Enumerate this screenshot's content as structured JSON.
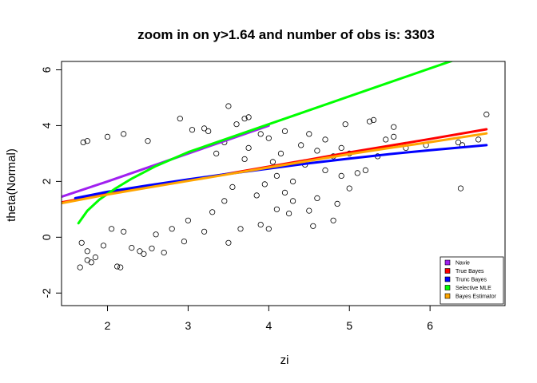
{
  "chart_data": {
    "type": "scatter",
    "title": "zoom in on y>1.64 and number of obs is: 3303",
    "xlabel": "zi",
    "ylabel": "theta(Normal)",
    "xlim": [
      1.43,
      6.93
    ],
    "ylim": [
      -2.45,
      6.3
    ],
    "x_ticks": [
      2,
      3,
      4,
      5,
      6
    ],
    "y_ticks": [
      -2,
      0,
      2,
      4,
      6
    ],
    "x_tick_labels": [
      "2",
      "3",
      "4",
      "5",
      "6"
    ],
    "y_tick_labels": [
      "-2",
      "0",
      "2",
      "4",
      "6"
    ],
    "n_obs": 3303,
    "point_style": "open circle",
    "points": [
      [
        1.66,
        -1.08
      ],
      [
        1.75,
        -0.82
      ],
      [
        1.85,
        -0.72
      ],
      [
        1.8,
        -0.9
      ],
      [
        2.12,
        -1.05
      ],
      [
        2.16,
        -1.08
      ],
      [
        2.3,
        -0.38
      ],
      [
        2.4,
        -0.5
      ],
      [
        2.45,
        -0.6
      ],
      [
        2.55,
        -0.4
      ],
      [
        2.7,
        -0.55
      ],
      [
        2.95,
        -0.15
      ],
      [
        3.5,
        -0.2
      ],
      [
        3.65,
        0.3
      ],
      [
        3.9,
        0.45
      ],
      [
        4.0,
        0.3
      ],
      [
        4.25,
        0.85
      ],
      [
        4.5,
        0.95
      ],
      [
        4.55,
        0.4
      ],
      [
        4.8,
        0.6
      ],
      [
        5.0,
        1.75
      ],
      [
        4.1,
        1.0
      ],
      [
        4.3,
        1.3
      ],
      [
        4.6,
        1.4
      ],
      [
        4.85,
        1.2
      ],
      [
        5.1,
        2.3
      ],
      [
        5.2,
        2.4
      ],
      [
        5.35,
        2.9
      ],
      [
        5.45,
        3.5
      ],
      [
        5.55,
        3.6
      ],
      [
        5.7,
        3.2
      ],
      [
        5.95,
        3.3
      ],
      [
        6.35,
        3.4
      ],
      [
        6.4,
        3.3
      ],
      [
        6.6,
        3.5
      ],
      [
        6.7,
        4.4
      ],
      [
        6.38,
        1.75
      ],
      [
        5.0,
        3.0
      ],
      [
        4.9,
        3.2
      ],
      [
        5.3,
        4.2
      ],
      [
        5.25,
        4.15
      ],
      [
        5.55,
        3.95
      ],
      [
        4.95,
        4.05
      ],
      [
        4.7,
        3.5
      ],
      [
        4.5,
        3.7
      ],
      [
        4.2,
        3.8
      ],
      [
        3.5,
        4.7
      ],
      [
        3.75,
        4.3
      ],
      [
        3.7,
        4.25
      ],
      [
        3.6,
        4.05
      ],
      [
        3.2,
        3.9
      ],
      [
        3.25,
        3.8
      ],
      [
        2.9,
        4.25
      ],
      [
        3.05,
        3.85
      ],
      [
        2.2,
        3.7
      ],
      [
        2.0,
        3.6
      ],
      [
        1.75,
        3.45
      ],
      [
        1.7,
        3.4
      ],
      [
        2.5,
        3.45
      ],
      [
        3.9,
        3.7
      ],
      [
        4.0,
        3.55
      ],
      [
        4.4,
        3.3
      ],
      [
        4.6,
        3.1
      ],
      [
        4.8,
        2.9
      ],
      [
        4.1,
        2.2
      ],
      [
        4.3,
        2.0
      ],
      [
        4.45,
        2.6
      ],
      [
        4.7,
        2.4
      ],
      [
        4.9,
        2.2
      ],
      [
        4.2,
        1.6
      ],
      [
        3.3,
        0.9
      ],
      [
        3.2,
        0.2
      ],
      [
        3.0,
        0.6
      ],
      [
        2.6,
        0.1
      ],
      [
        2.8,
        0.3
      ],
      [
        2.2,
        0.2
      ],
      [
        2.05,
        0.3
      ],
      [
        1.95,
        -0.3
      ],
      [
        1.75,
        -0.5
      ],
      [
        1.68,
        -0.2
      ],
      [
        3.85,
        1.5
      ],
      [
        3.95,
        1.9
      ],
      [
        4.05,
        2.7
      ],
      [
        4.15,
        3.0
      ],
      [
        3.7,
        2.8
      ],
      [
        3.75,
        3.2
      ],
      [
        3.45,
        3.4
      ],
      [
        3.35,
        3.0
      ],
      [
        3.55,
        1.8
      ],
      [
        3.45,
        1.3
      ]
    ],
    "series": [
      {
        "name": "Navie",
        "color": "#a020f0",
        "x": [
          1.43,
          2.0,
          2.5,
          3.0,
          3.5,
          4.0
        ],
        "y": [
          1.45,
          2.0,
          2.5,
          3.0,
          3.5,
          4.0
        ]
      },
      {
        "name": "True Bayes",
        "color": "#ff0000",
        "x": [
          1.43,
          2.0,
          2.5,
          3.0,
          3.5,
          4.0,
          4.5,
          5.0,
          5.5,
          6.0,
          6.7
        ],
        "y": [
          1.25,
          1.55,
          1.8,
          2.03,
          2.28,
          2.53,
          2.78,
          3.04,
          3.28,
          3.52,
          3.87
        ]
      },
      {
        "name": "Trunc Bayes",
        "color": "#0000ff",
        "x": [
          1.6,
          2.0,
          2.5,
          3.0,
          3.5,
          4.0,
          4.5,
          5.0,
          5.5,
          6.0,
          6.7
        ],
        "y": [
          1.4,
          1.63,
          1.86,
          2.07,
          2.27,
          2.46,
          2.65,
          2.82,
          2.98,
          3.12,
          3.3
        ]
      },
      {
        "name": "Selective MLE",
        "color": "#00ff00",
        "x": [
          1.64,
          1.75,
          1.9,
          2.1,
          2.3,
          2.6,
          3.0,
          3.5,
          4.0,
          4.5,
          5.0,
          5.5,
          6.0,
          6.4
        ],
        "y": [
          0.5,
          0.95,
          1.35,
          1.75,
          2.1,
          2.55,
          3.05,
          3.55,
          4.05,
          4.55,
          5.05,
          5.55,
          6.05,
          6.45
        ]
      },
      {
        "name": "Bayes Estimator",
        "color": "#ffa500",
        "x": [
          1.43,
          2.0,
          2.5,
          3.0,
          3.5,
          4.0,
          4.5,
          5.0,
          5.5,
          6.0,
          6.7
        ],
        "y": [
          1.22,
          1.53,
          1.78,
          2.02,
          2.26,
          2.5,
          2.74,
          2.98,
          3.2,
          3.41,
          3.72
        ]
      }
    ],
    "legend": {
      "position": "bottom-right",
      "entries": [
        {
          "label": "Navie",
          "color": "#a020f0"
        },
        {
          "label": "True Bayes",
          "color": "#ff0000"
        },
        {
          "label": "Trunc Bayes",
          "color": "#0000ff"
        },
        {
          "label": "Selective MLE",
          "color": "#00ff00"
        },
        {
          "label": "Bayes Estimator",
          "color": "#ffa500"
        }
      ]
    }
  }
}
